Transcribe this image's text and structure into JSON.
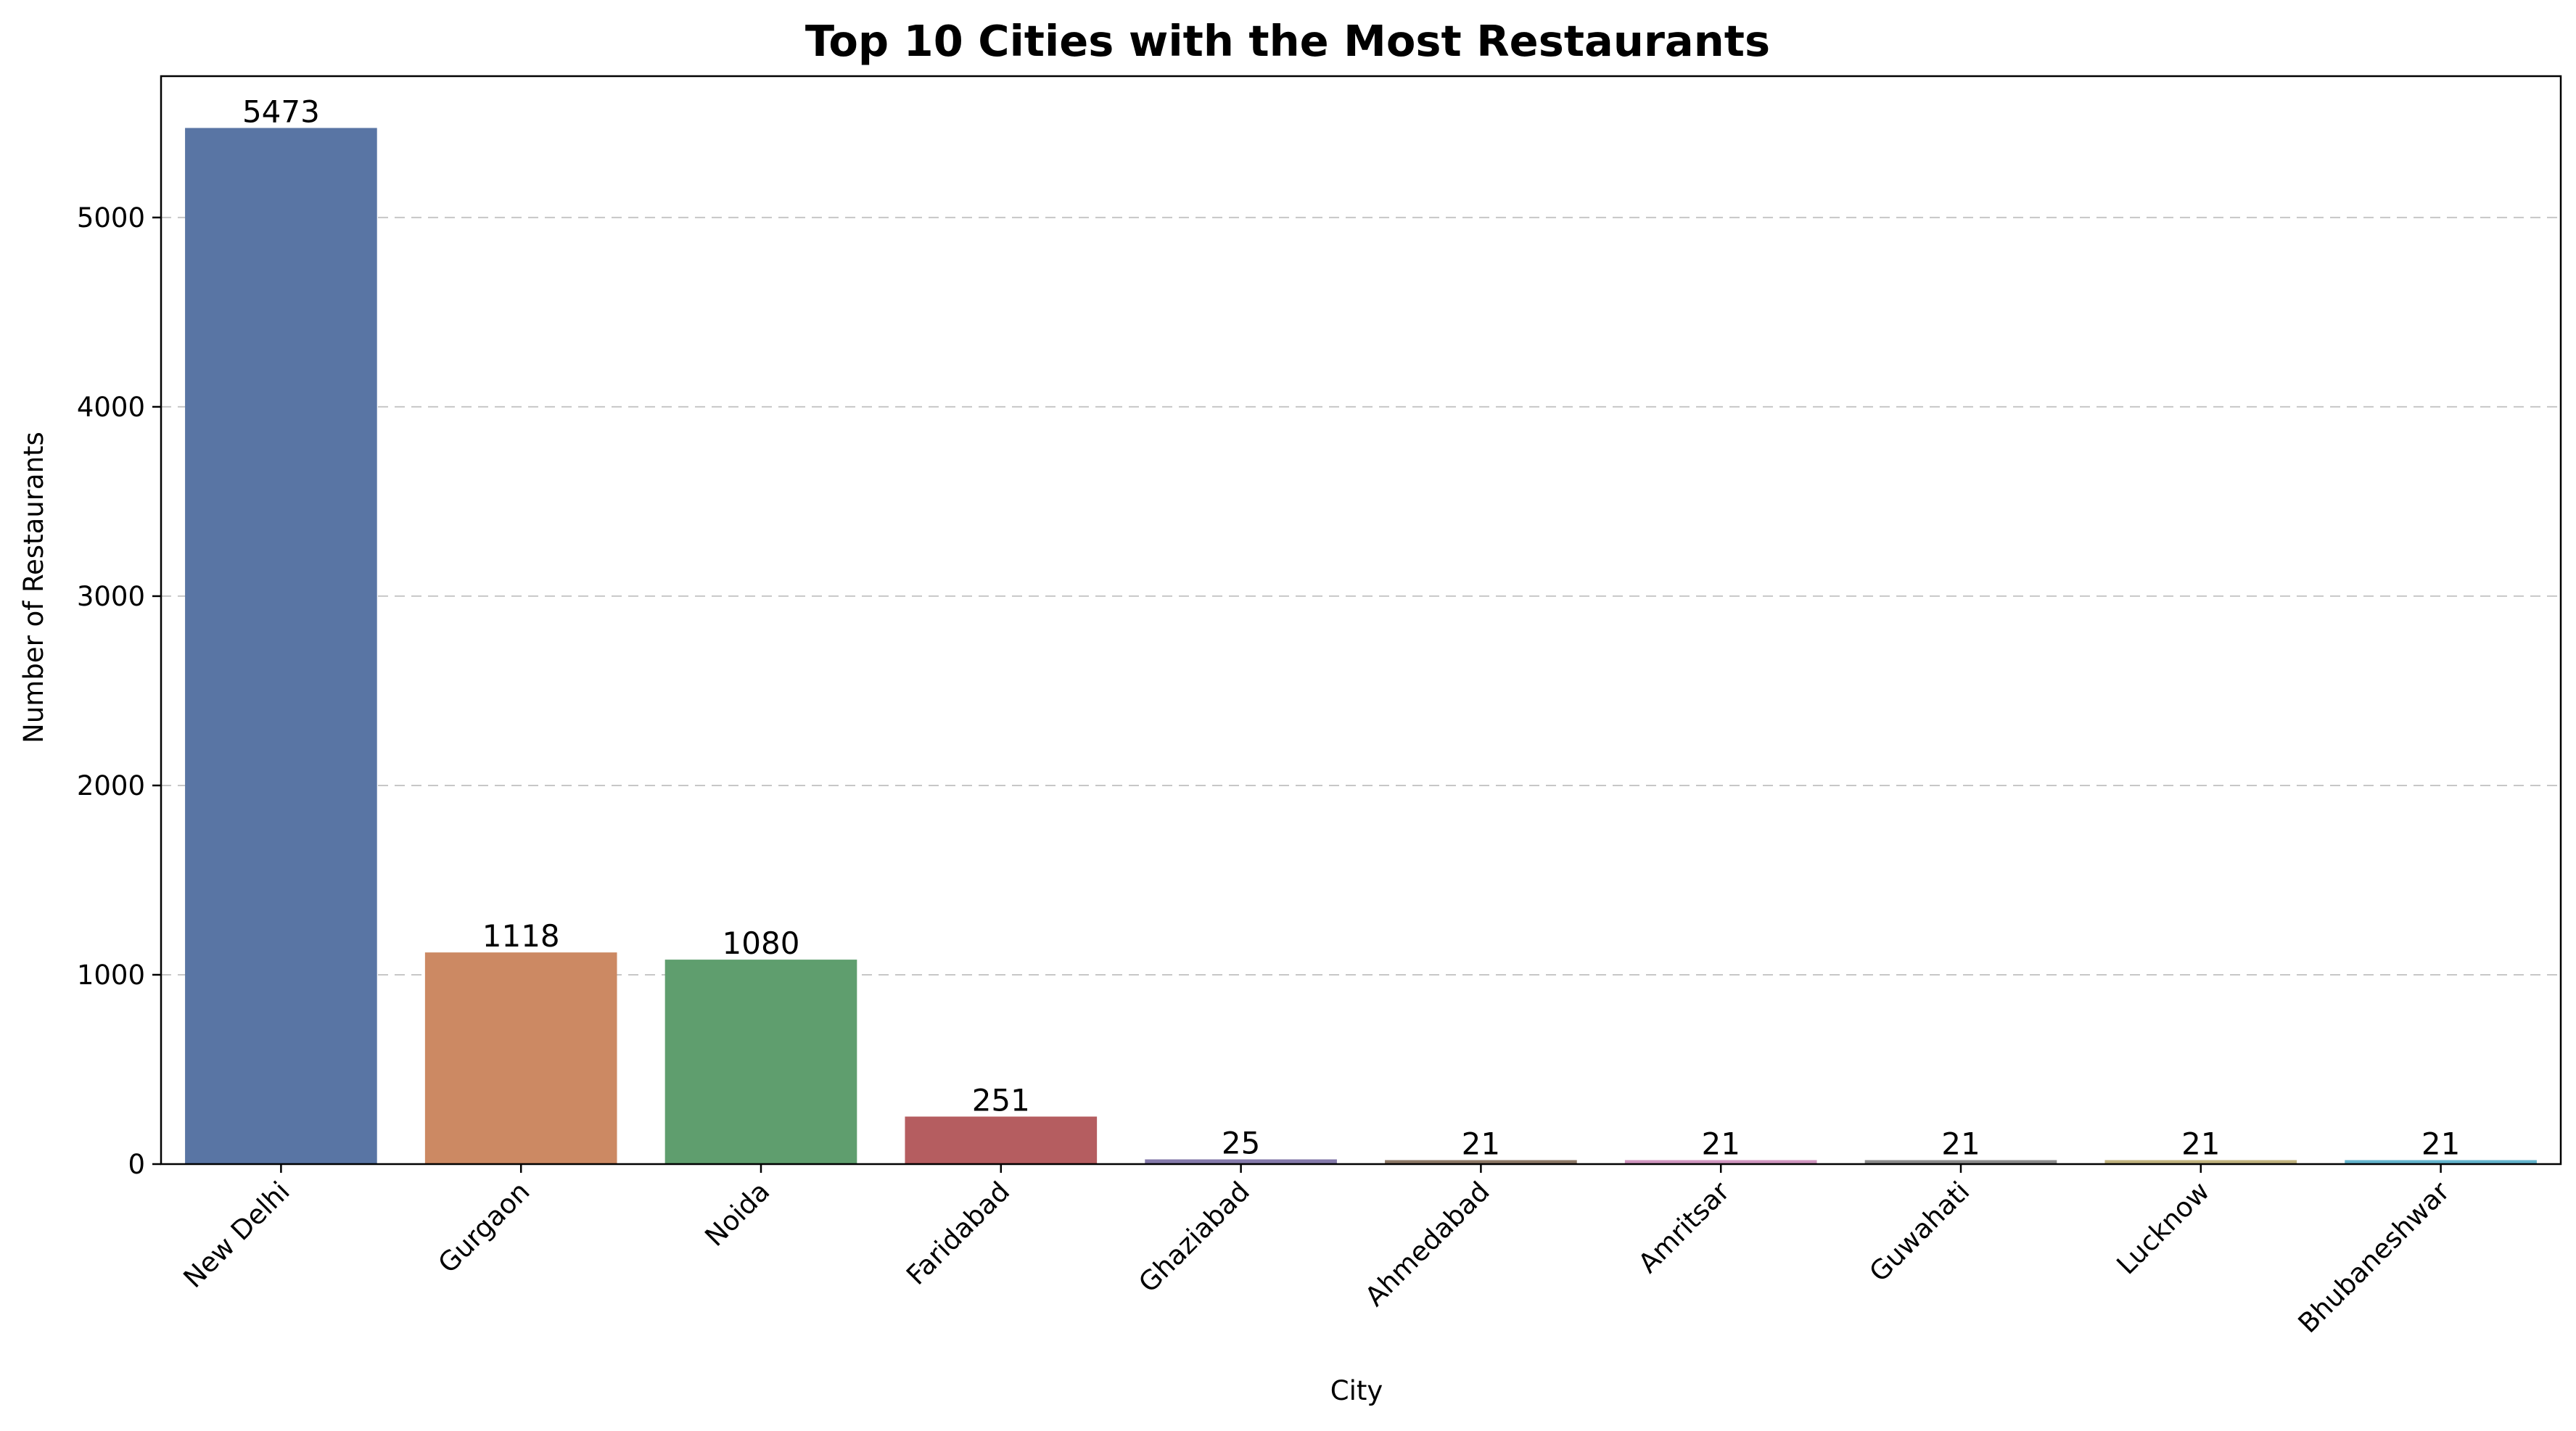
{
  "chart_data": {
    "type": "bar",
    "title": "Top 10 Cities with the Most Restaurants",
    "xlabel": "City",
    "ylabel": "Number of Restaurants",
    "categories": [
      "New Delhi",
      "Gurgaon",
      "Noida",
      "Faridabad",
      "Ghaziabad",
      "Ahmedabad",
      "Amritsar",
      "Guwahati",
      "Lucknow",
      "Bhubaneshwar"
    ],
    "values": [
      5473,
      1118,
      1080,
      251,
      25,
      21,
      21,
      21,
      21,
      21
    ],
    "data_labels": [
      "5473",
      "1118",
      "1080",
      "251",
      "25",
      "21",
      "21",
      "21",
      "21",
      "21"
    ],
    "colors": [
      "#5975a4",
      "#cc8963",
      "#5f9e6e",
      "#b55d60",
      "#857aab",
      "#8d7866",
      "#d095bf",
      "#8c8c8c",
      "#c1b37f",
      "#64b5cd"
    ],
    "yticks": [
      0,
      1000,
      2000,
      3000,
      4000,
      5000
    ],
    "ytick_labels": [
      "0",
      "1000",
      "2000",
      "3000",
      "4000",
      "5000"
    ],
    "ylim": [
      0,
      5746.65
    ],
    "grid": "horizontal-dashed",
    "x_tick_rotation_deg": 45
  }
}
